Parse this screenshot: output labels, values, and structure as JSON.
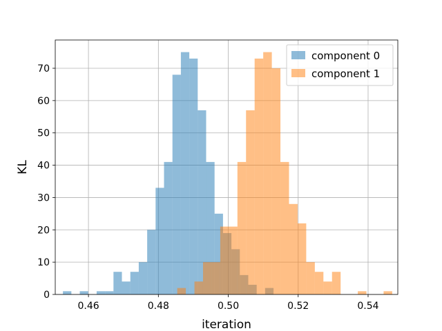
{
  "chart_data": {
    "type": "bar",
    "subtype": "histogram",
    "title": "",
    "xlabel": "iteration",
    "ylabel": "KL",
    "xlim": [
      0.4505,
      0.5485
    ],
    "ylim": [
      0,
      78.75
    ],
    "xticks": [
      0.46,
      0.48,
      0.5,
      0.52,
      0.54
    ],
    "xtick_labels": [
      "0.46",
      "0.48",
      "0.50",
      "0.52",
      "0.54"
    ],
    "yticks": [
      0,
      10,
      20,
      30,
      40,
      50,
      60,
      70
    ],
    "ytick_labels": [
      "0",
      "10",
      "20",
      "30",
      "40",
      "50",
      "60",
      "70"
    ],
    "grid": true,
    "legend_position": "top-right",
    "series": [
      {
        "name": "component 0",
        "color": "#1f77b4",
        "alpha": 0.5,
        "bin_start": 0.4527,
        "bin_width": 0.00241,
        "counts": [
          1,
          0,
          1,
          0,
          1,
          1,
          7,
          4,
          7,
          10,
          20,
          33,
          41,
          68,
          75,
          73,
          57,
          41,
          25,
          19,
          14,
          6,
          3,
          0,
          2
        ]
      },
      {
        "name": "component 1",
        "color": "#ff7f0e",
        "alpha": 0.5,
        "bin_start": 0.4854,
        "bin_width": 0.00246,
        "counts": [
          2,
          0,
          4,
          10,
          10,
          21,
          21,
          41,
          57,
          73,
          75,
          70,
          41,
          28,
          22,
          10,
          7,
          4,
          7,
          0,
          0,
          1,
          0,
          0,
          1
        ]
      }
    ]
  }
}
